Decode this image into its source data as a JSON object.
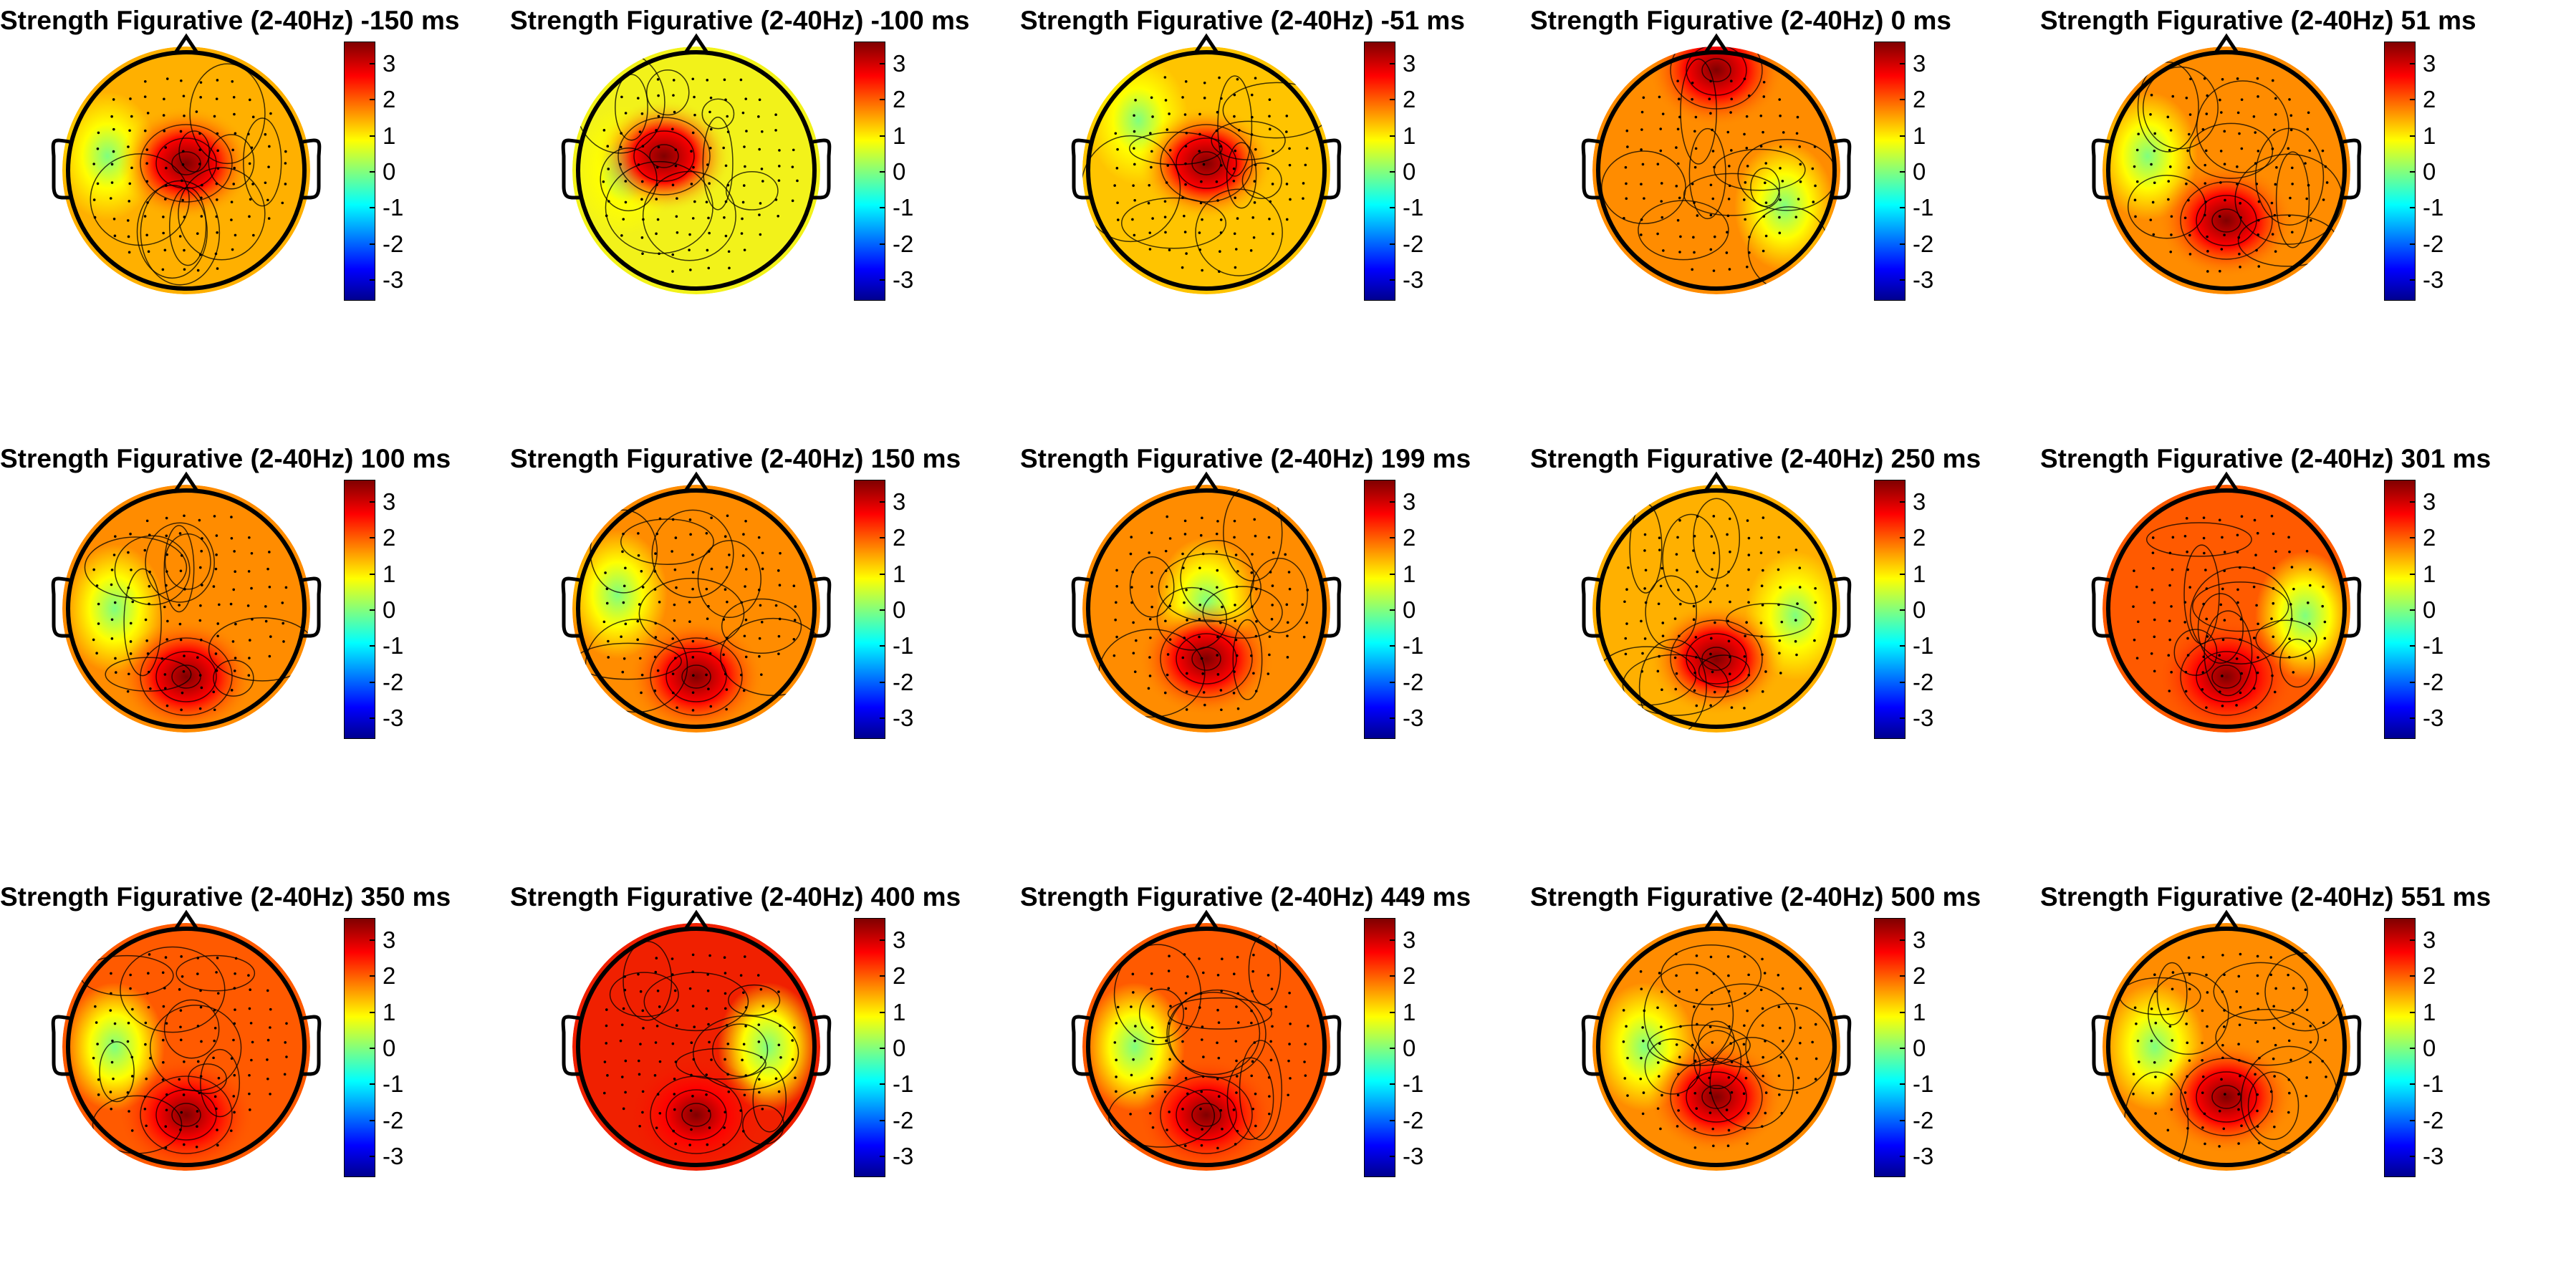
{
  "figure": {
    "title_prefix": "Strength Figurative (2-40Hz)",
    "colormap": "jet",
    "colorbar_ticks": [
      "3",
      "2",
      "1",
      "0",
      "-1",
      "-2",
      "-3"
    ],
    "colorbar_range": [
      -3.6,
      3.6
    ],
    "colors": {
      "dark_red": "#800000",
      "red": "#ff0000",
      "orange": "#ff8c00",
      "yellow": "#ffff00",
      "cyan": "#00ffff",
      "blue": "#0000ff",
      "dark_blue": "#00008f"
    }
  },
  "panels": [
    {
      "title": "Strength Figurative (2-40Hz) -150 ms",
      "time_ms": -150,
      "dominant": "orange-yellow",
      "hot_region": "center",
      "cool_region": "left-temporal"
    },
    {
      "title": "Strength Figurative (2-40Hz) -100 ms",
      "time_ms": -100,
      "dominant": "yellow",
      "hot_region": "center-left",
      "cool_region": "left"
    },
    {
      "title": "Strength Figurative (2-40Hz) -51 ms",
      "time_ms": -51,
      "dominant": "yellow-orange",
      "hot_region": "center",
      "cool_region": "left-frontal"
    },
    {
      "title": "Strength Figurative (2-40Hz) 0 ms",
      "time_ms": 0,
      "dominant": "orange",
      "hot_region": "rim",
      "cool_region": "right-posterior"
    },
    {
      "title": "Strength Figurative (2-40Hz) 51 ms",
      "time_ms": 51,
      "dominant": "orange",
      "hot_region": "posterior-center",
      "cool_region": "left-temporal"
    },
    {
      "title": "Strength Figurative (2-40Hz) 100 ms",
      "time_ms": 100,
      "dominant": "orange",
      "hot_region": "posterior",
      "cool_region": "left"
    },
    {
      "title": "Strength Figurative (2-40Hz) 150 ms",
      "time_ms": 150,
      "dominant": "orange",
      "hot_region": "posterior",
      "cool_region": "left-temporal"
    },
    {
      "title": "Strength Figurative (2-40Hz) 199 ms",
      "time_ms": 199,
      "dominant": "orange",
      "hot_region": "posterior-center",
      "cool_region": "center"
    },
    {
      "title": "Strength Figurative (2-40Hz) 250 ms",
      "time_ms": 250,
      "dominant": "orange-yellow",
      "hot_region": "posterior-center",
      "cool_region": "right-temporal"
    },
    {
      "title": "Strength Figurative (2-40Hz) 301 ms",
      "time_ms": 301,
      "dominant": "orange-red",
      "hot_region": "posterior",
      "cool_region": "right-temporal"
    },
    {
      "title": "Strength Figurative (2-40Hz) 350 ms",
      "time_ms": 350,
      "dominant": "orange-red",
      "hot_region": "posterior",
      "cool_region": "left"
    },
    {
      "title": "Strength Figurative (2-40Hz) 400 ms",
      "time_ms": 400,
      "dominant": "red",
      "hot_region": "posterior",
      "cool_region": "right"
    },
    {
      "title": "Strength Figurative (2-40Hz) 449 ms",
      "time_ms": 449,
      "dominant": "orange-red",
      "hot_region": "posterior",
      "cool_region": "left"
    },
    {
      "title": "Strength Figurative (2-40Hz) 500 ms",
      "time_ms": 500,
      "dominant": "orange",
      "hot_region": "posterior-center",
      "cool_region": "left"
    },
    {
      "title": "Strength Figurative (2-40Hz) 551 ms",
      "time_ms": 551,
      "dominant": "orange",
      "hot_region": "posterior-center",
      "cool_region": "left"
    }
  ],
  "chart_data": {
    "type": "heatmap",
    "subtype": "eeg-topographic-map",
    "title": "Strength Figurative (2-40Hz)",
    "xlabel": "",
    "ylabel": "",
    "grid": false,
    "layout": "3 rows x 5 columns",
    "time_points_ms": [
      -150,
      -100,
      -51,
      0,
      51,
      100,
      150,
      199,
      250,
      301,
      350,
      400,
      449,
      500,
      551
    ],
    "colorbar": {
      "colormap": "jet",
      "ticks": [
        3,
        2,
        1,
        0,
        -1,
        -2,
        -3
      ],
      "range": [
        -3.6,
        3.6
      ]
    },
    "series": [
      {
        "name": "-150 ms",
        "mean_value_estimate": 1.2,
        "max_region": "center",
        "max_value_estimate": 3.0
      },
      {
        "name": "-100 ms",
        "mean_value_estimate": 0.9,
        "max_region": "center-left",
        "max_value_estimate": 2.5
      },
      {
        "name": "-51 ms",
        "mean_value_estimate": 1.0,
        "max_region": "center",
        "max_value_estimate": 2.3
      },
      {
        "name": "0 ms",
        "mean_value_estimate": 1.6,
        "max_region": "rim",
        "max_value_estimate": 2.8
      },
      {
        "name": "51 ms",
        "mean_value_estimate": 1.7,
        "max_region": "posterior-center",
        "max_value_estimate": 3.2
      },
      {
        "name": "100 ms",
        "mean_value_estimate": 1.8,
        "max_region": "posterior",
        "max_value_estimate": 3.5
      },
      {
        "name": "150 ms",
        "mean_value_estimate": 1.6,
        "max_region": "posterior",
        "max_value_estimate": 3.0
      },
      {
        "name": "199 ms",
        "mean_value_estimate": 1.8,
        "max_region": "posterior-center",
        "max_value_estimate": 3.3
      },
      {
        "name": "250 ms",
        "mean_value_estimate": 1.5,
        "max_region": "posterior-center",
        "max_value_estimate": 3.2
      },
      {
        "name": "301 ms",
        "mean_value_estimate": 2.0,
        "max_region": "posterior",
        "max_value_estimate": 3.5
      },
      {
        "name": "350 ms",
        "mean_value_estimate": 2.0,
        "max_region": "posterior",
        "max_value_estimate": 3.5
      },
      {
        "name": "400 ms",
        "mean_value_estimate": 2.3,
        "max_region": "posterior",
        "max_value_estimate": 3.5
      },
      {
        "name": "449 ms",
        "mean_value_estimate": 2.1,
        "max_region": "posterior",
        "max_value_estimate": 3.5
      },
      {
        "name": "500 ms",
        "mean_value_estimate": 1.7,
        "max_region": "posterior-center",
        "max_value_estimate": 3.4
      },
      {
        "name": "551 ms",
        "mean_value_estimate": 1.7,
        "max_region": "posterior-center",
        "max_value_estimate": 3.4
      }
    ]
  }
}
